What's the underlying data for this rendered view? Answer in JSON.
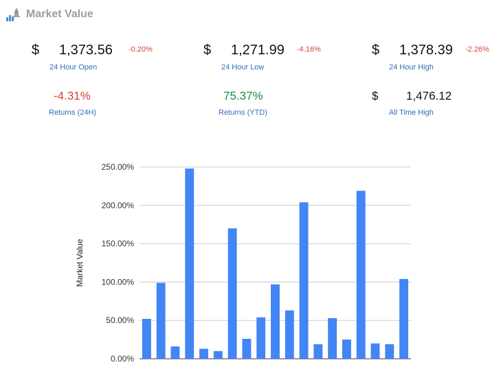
{
  "header": {
    "title": "Market Value",
    "logo_icon": "chart-rocket-icon"
  },
  "stats": {
    "currency_symbol": "$",
    "open": {
      "value": "1,373.56",
      "delta": "-0.20%",
      "label": "24 Hour Open"
    },
    "low": {
      "value": "1,271.99",
      "delta": "-4.16%",
      "label": "24 Hour Low"
    },
    "high": {
      "value": "1,378.39",
      "delta": "-2.26%",
      "label": "24 Hour High"
    },
    "returns_24h": {
      "value": "-4.31%",
      "label": "Returns (24H)"
    },
    "returns_ytd": {
      "value": "75.37%",
      "label": "Returns (YTD)"
    },
    "ath": {
      "value": "1,476.12",
      "label": "All Time High"
    }
  },
  "colors": {
    "bar": "#4285f4",
    "negative": "#d0453a",
    "positive": "#1b8a4a",
    "label": "#2f6fbf",
    "title": "#9e9e9e"
  },
  "chart_data": {
    "type": "bar",
    "ylabel": "Market Value",
    "ylim": [
      0,
      250
    ],
    "yticks": [
      "0.00%",
      "50.00%",
      "100.00%",
      "150.00%",
      "200.00%",
      "250.00%"
    ],
    "grid": true,
    "values": [
      52,
      99,
      16,
      248,
      13,
      10,
      170,
      26,
      54,
      97,
      63,
      204,
      19,
      53,
      25,
      219,
      20,
      19,
      104
    ]
  }
}
